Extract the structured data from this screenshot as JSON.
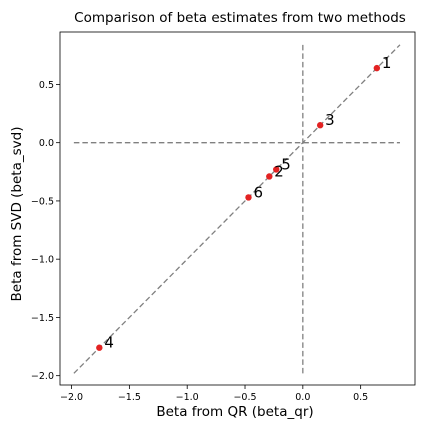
{
  "chart_data": {
    "type": "scatter",
    "title": "Comparison of beta estimates from two methods",
    "xlabel": "Beta from QR (beta_qr)",
    "ylabel": "Beta from SVD (beta_svd)",
    "xlim": [
      -2.1,
      0.97
    ],
    "ylim": [
      -2.08,
      0.95
    ],
    "xticks": [
      -2.0,
      -1.5,
      -1.0,
      -0.5,
      0.0,
      0.5
    ],
    "xtick_labels": [
      "−2.0",
      "−1.5",
      "−1.0",
      "−0.5",
      "0.0",
      "0.5"
    ],
    "yticks": [
      -2.0,
      -1.5,
      -1.0,
      -0.5,
      0.0,
      0.5
    ],
    "ytick_labels": [
      "−2.0",
      "−1.5",
      "−1.0",
      "−0.5",
      "0.0",
      "0.5"
    ],
    "grid": false,
    "points": [
      {
        "label": "1",
        "x": 0.64,
        "y": 0.64
      },
      {
        "label": "3",
        "x": 0.15,
        "y": 0.15
      },
      {
        "label": "5",
        "x": -0.23,
        "y": -0.23
      },
      {
        "label": "2",
        "x": -0.29,
        "y": -0.29
      },
      {
        "label": "6",
        "x": -0.47,
        "y": -0.47
      },
      {
        "label": "4",
        "x": -1.76,
        "y": -1.76
      }
    ],
    "reference_lines": {
      "diagonal": {
        "from": [
          -1.98,
          -1.98
        ],
        "to": [
          0.84,
          0.84
        ]
      },
      "horizontal": {
        "y": 0.0,
        "x_from": -1.98,
        "x_to": 0.84
      },
      "vertical": {
        "x": 0.0,
        "y_from": -1.98,
        "y_to": 0.84
      }
    },
    "colors": {
      "point": "#e32222",
      "reference_line": "#808080"
    }
  }
}
